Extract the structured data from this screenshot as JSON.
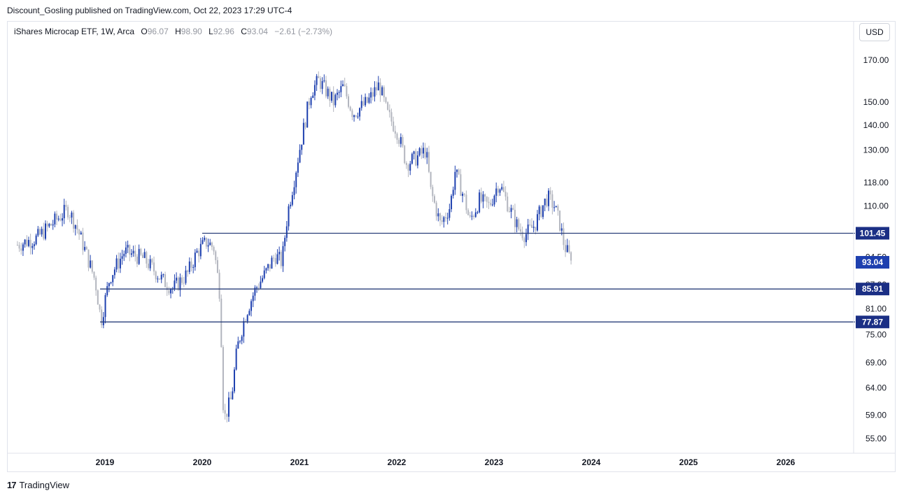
{
  "header": {
    "publisher": "Discount_Gosling published on TradingView.com, Oct 22, 2023 17:29 UTC-4"
  },
  "legend": {
    "symbol": "iShares Microcap ETF, 1W, Arca",
    "o_label": "O",
    "o_value": "96.07",
    "h_label": "H",
    "h_value": "98.90",
    "l_label": "L",
    "l_value": "92.96",
    "c_label": "C",
    "c_value": "93.04",
    "change": "−2.61 (−2.73%)"
  },
  "currency": "USD",
  "brand": {
    "logo": "17",
    "name": "TradingView"
  },
  "colors": {
    "up": "#1e40af",
    "down": "#b2b5be",
    "level_line": "#2a3f7a",
    "level_label_bg": "#1b2f85",
    "price_label_bg": "#1e40af"
  },
  "chart_data": {
    "type": "candlestick",
    "interval": "1W",
    "y_scale": "log",
    "y_ticks": [
      "170.00",
      "150.00",
      "140.00",
      "130.00",
      "118.00",
      "110.00",
      "94.50",
      "87.00",
      "81.00",
      "75.00",
      "69.00",
      "64.00",
      "59.00",
      "55.00"
    ],
    "x_ticks": [
      "2019",
      "2020",
      "2021",
      "2022",
      "2023",
      "2024",
      "2025",
      "2026"
    ],
    "last_price": "93.04",
    "levels": [
      {
        "value": 101.45,
        "label": "101.45",
        "start": "2020.0"
      },
      {
        "value": 85.91,
        "label": "85.91",
        "start": "2018.95"
      },
      {
        "value": 77.87,
        "label": "77.87",
        "start": "2018.95"
      }
    ],
    "path": [
      [
        2018.1,
        98
      ],
      [
        2018.3,
        100
      ],
      [
        2018.55,
        107
      ],
      [
        2018.62,
        109
      ],
      [
        2018.7,
        104
      ],
      [
        2018.8,
        96
      ],
      [
        2018.9,
        88
      ],
      [
        2018.96,
        78
      ],
      [
        2019.05,
        89
      ],
      [
        2019.2,
        96
      ],
      [
        2019.4,
        94
      ],
      [
        2019.6,
        88
      ],
      [
        2019.7,
        86
      ],
      [
        2019.85,
        90
      ],
      [
        2019.95,
        96
      ],
      [
        2020.05,
        99
      ],
      [
        2020.12,
        97
      ],
      [
        2020.18,
        85
      ],
      [
        2020.22,
        58
      ],
      [
        2020.3,
        62
      ],
      [
        2020.36,
        72
      ],
      [
        2020.45,
        80
      ],
      [
        2020.55,
        86
      ],
      [
        2020.65,
        90
      ],
      [
        2020.75,
        95
      ],
      [
        2020.82,
        93
      ],
      [
        2020.88,
        108
      ],
      [
        2020.95,
        120
      ],
      [
        2021.05,
        140
      ],
      [
        2021.12,
        155
      ],
      [
        2021.2,
        160
      ],
      [
        2021.35,
        150
      ],
      [
        2021.45,
        157
      ],
      [
        2021.55,
        145
      ],
      [
        2021.7,
        150
      ],
      [
        2021.82,
        158
      ],
      [
        2021.9,
        145
      ],
      [
        2022.0,
        138
      ],
      [
        2022.1,
        125
      ],
      [
        2022.2,
        127
      ],
      [
        2022.3,
        130
      ],
      [
        2022.35,
        115
      ],
      [
        2022.45,
        104
      ],
      [
        2022.55,
        110
      ],
      [
        2022.6,
        122
      ],
      [
        2022.7,
        112
      ],
      [
        2022.75,
        105
      ],
      [
        2022.85,
        112
      ],
      [
        2022.95,
        110
      ],
      [
        2023.05,
        118
      ],
      [
        2023.15,
        110
      ],
      [
        2023.25,
        103
      ],
      [
        2023.32,
        101
      ],
      [
        2023.42,
        104
      ],
      [
        2023.5,
        110
      ],
      [
        2023.55,
        113
      ],
      [
        2023.62,
        110
      ],
      [
        2023.68,
        104
      ],
      [
        2023.72,
        98
      ],
      [
        2023.8,
        93.04
      ]
    ]
  }
}
